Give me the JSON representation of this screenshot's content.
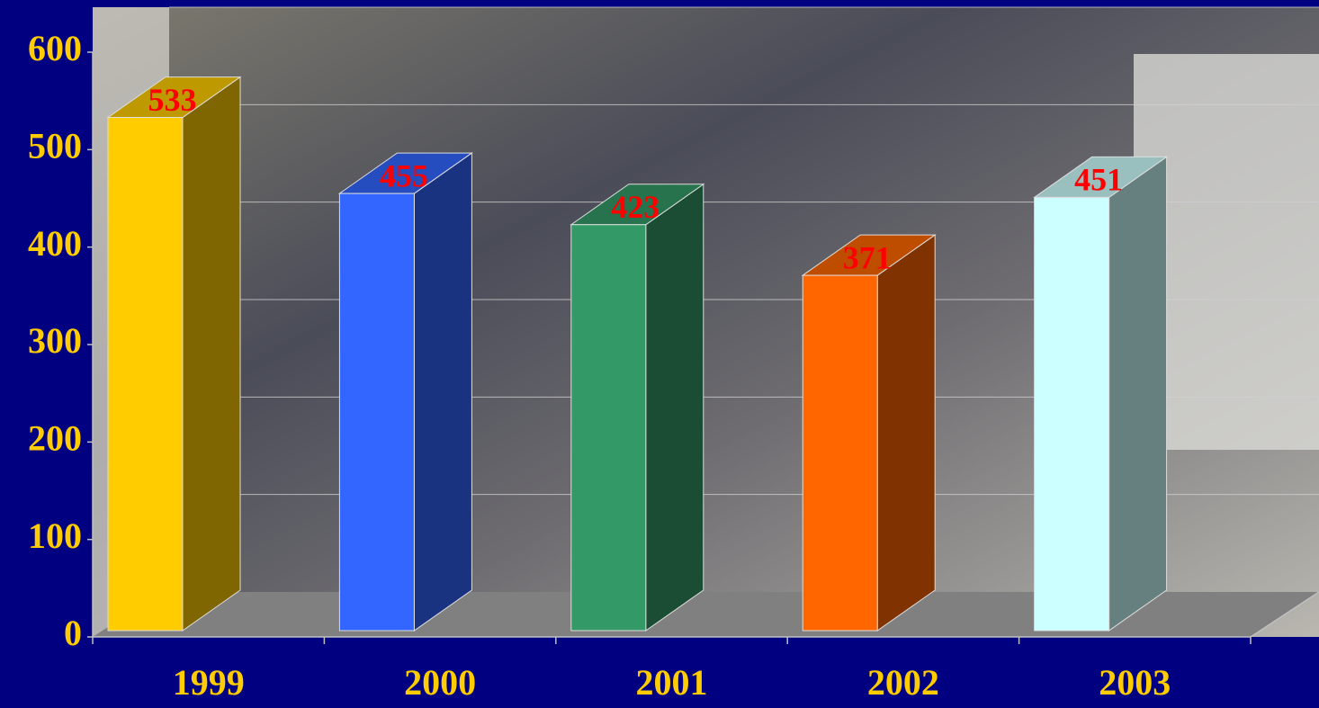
{
  "chart_data": {
    "type": "bar3d",
    "categories": [
      "1999",
      "2000",
      "2001",
      "2002",
      "2003"
    ],
    "values": [
      533,
      455,
      423,
      371,
      451
    ],
    "colors": [
      "#ffcc00",
      "#3366ff",
      "#339966",
      "#ff6600",
      "#ccffff"
    ],
    "ylim": [
      0,
      600
    ],
    "yticks": [
      0,
      100,
      200,
      300,
      400,
      500,
      600
    ],
    "grid": true
  }
}
